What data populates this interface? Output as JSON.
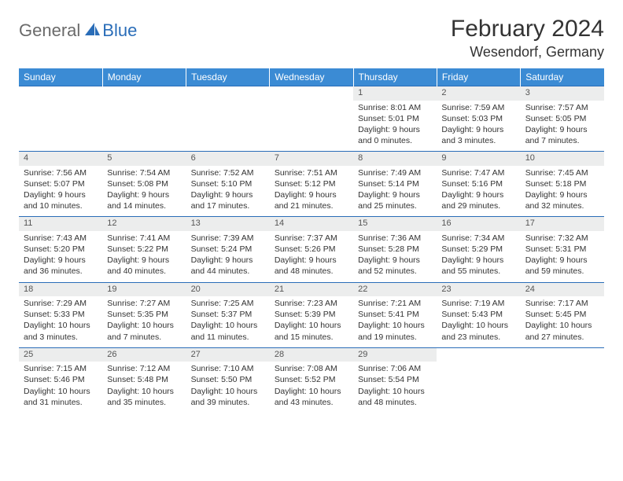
{
  "brand": {
    "part1": "General",
    "part2": "Blue"
  },
  "title": "February 2024",
  "location": "Wesendorf, Germany",
  "colors": {
    "header_bg": "#3b8bd4",
    "header_text": "#ffffff",
    "rule": "#2a6db8",
    "daynum_bg": "#eceded",
    "text": "#333333",
    "logo_gray": "#6a6a6a",
    "logo_blue": "#2a6db8"
  },
  "day_headers": [
    "Sunday",
    "Monday",
    "Tuesday",
    "Wednesday",
    "Thursday",
    "Friday",
    "Saturday"
  ],
  "weeks": [
    [
      null,
      null,
      null,
      null,
      {
        "n": "1",
        "sr": "8:01 AM",
        "ss": "5:01 PM",
        "dl": "9 hours and 0 minutes."
      },
      {
        "n": "2",
        "sr": "7:59 AM",
        "ss": "5:03 PM",
        "dl": "9 hours and 3 minutes."
      },
      {
        "n": "3",
        "sr": "7:57 AM",
        "ss": "5:05 PM",
        "dl": "9 hours and 7 minutes."
      }
    ],
    [
      {
        "n": "4",
        "sr": "7:56 AM",
        "ss": "5:07 PM",
        "dl": "9 hours and 10 minutes."
      },
      {
        "n": "5",
        "sr": "7:54 AM",
        "ss": "5:08 PM",
        "dl": "9 hours and 14 minutes."
      },
      {
        "n": "6",
        "sr": "7:52 AM",
        "ss": "5:10 PM",
        "dl": "9 hours and 17 minutes."
      },
      {
        "n": "7",
        "sr": "7:51 AM",
        "ss": "5:12 PM",
        "dl": "9 hours and 21 minutes."
      },
      {
        "n": "8",
        "sr": "7:49 AM",
        "ss": "5:14 PM",
        "dl": "9 hours and 25 minutes."
      },
      {
        "n": "9",
        "sr": "7:47 AM",
        "ss": "5:16 PM",
        "dl": "9 hours and 29 minutes."
      },
      {
        "n": "10",
        "sr": "7:45 AM",
        "ss": "5:18 PM",
        "dl": "9 hours and 32 minutes."
      }
    ],
    [
      {
        "n": "11",
        "sr": "7:43 AM",
        "ss": "5:20 PM",
        "dl": "9 hours and 36 minutes."
      },
      {
        "n": "12",
        "sr": "7:41 AM",
        "ss": "5:22 PM",
        "dl": "9 hours and 40 minutes."
      },
      {
        "n": "13",
        "sr": "7:39 AM",
        "ss": "5:24 PM",
        "dl": "9 hours and 44 minutes."
      },
      {
        "n": "14",
        "sr": "7:37 AM",
        "ss": "5:26 PM",
        "dl": "9 hours and 48 minutes."
      },
      {
        "n": "15",
        "sr": "7:36 AM",
        "ss": "5:28 PM",
        "dl": "9 hours and 52 minutes."
      },
      {
        "n": "16",
        "sr": "7:34 AM",
        "ss": "5:29 PM",
        "dl": "9 hours and 55 minutes."
      },
      {
        "n": "17",
        "sr": "7:32 AM",
        "ss": "5:31 PM",
        "dl": "9 hours and 59 minutes."
      }
    ],
    [
      {
        "n": "18",
        "sr": "7:29 AM",
        "ss": "5:33 PM",
        "dl": "10 hours and 3 minutes."
      },
      {
        "n": "19",
        "sr": "7:27 AM",
        "ss": "5:35 PM",
        "dl": "10 hours and 7 minutes."
      },
      {
        "n": "20",
        "sr": "7:25 AM",
        "ss": "5:37 PM",
        "dl": "10 hours and 11 minutes."
      },
      {
        "n": "21",
        "sr": "7:23 AM",
        "ss": "5:39 PM",
        "dl": "10 hours and 15 minutes."
      },
      {
        "n": "22",
        "sr": "7:21 AM",
        "ss": "5:41 PM",
        "dl": "10 hours and 19 minutes."
      },
      {
        "n": "23",
        "sr": "7:19 AM",
        "ss": "5:43 PM",
        "dl": "10 hours and 23 minutes."
      },
      {
        "n": "24",
        "sr": "7:17 AM",
        "ss": "5:45 PM",
        "dl": "10 hours and 27 minutes."
      }
    ],
    [
      {
        "n": "25",
        "sr": "7:15 AM",
        "ss": "5:46 PM",
        "dl": "10 hours and 31 minutes."
      },
      {
        "n": "26",
        "sr": "7:12 AM",
        "ss": "5:48 PM",
        "dl": "10 hours and 35 minutes."
      },
      {
        "n": "27",
        "sr": "7:10 AM",
        "ss": "5:50 PM",
        "dl": "10 hours and 39 minutes."
      },
      {
        "n": "28",
        "sr": "7:08 AM",
        "ss": "5:52 PM",
        "dl": "10 hours and 43 minutes."
      },
      {
        "n": "29",
        "sr": "7:06 AM",
        "ss": "5:54 PM",
        "dl": "10 hours and 48 minutes."
      },
      null,
      null
    ]
  ],
  "labels": {
    "sunrise": "Sunrise: ",
    "sunset": "Sunset: ",
    "daylight": "Daylight: "
  }
}
